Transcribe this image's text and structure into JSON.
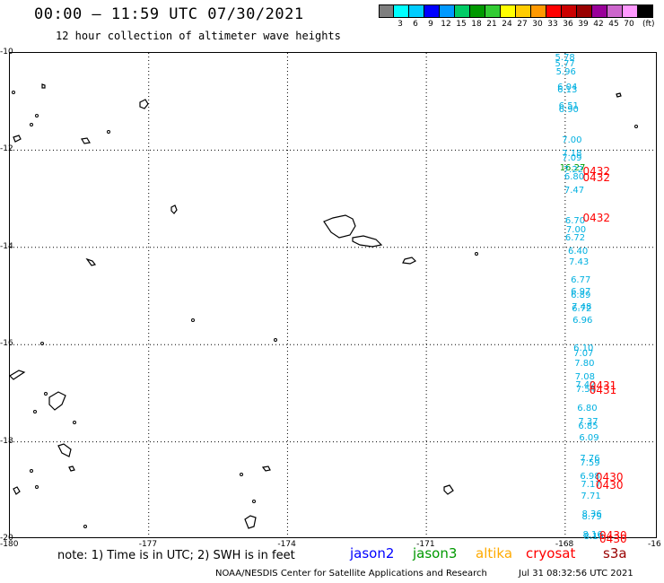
{
  "title": "00:00 – 11:59 UTC 07/30/2021",
  "subtitle": "12 hour collection of altimeter wave heights",
  "colorbar": {
    "unit": "(ft)",
    "bins": [
      {
        "label": "",
        "color": "#7f7f7f"
      },
      {
        "label": "3",
        "color": "#00ffff"
      },
      {
        "label": "6",
        "color": "#00ccff"
      },
      {
        "label": "9",
        "color": "#0000ff"
      },
      {
        "label": "12",
        "color": "#0099ff"
      },
      {
        "label": "15",
        "color": "#00cc66"
      },
      {
        "label": "18",
        "color": "#009900"
      },
      {
        "label": "21",
        "color": "#33cc33"
      },
      {
        "label": "24",
        "color": "#ffff00"
      },
      {
        "label": "27",
        "color": "#ffcc00"
      },
      {
        "label": "30",
        "color": "#ff9900"
      },
      {
        "label": "33",
        "color": "#ff0000"
      },
      {
        "label": "36",
        "color": "#cc0000"
      },
      {
        "label": "39",
        "color": "#990000"
      },
      {
        "label": "42",
        "color": "#990099"
      },
      {
        "label": "45",
        "color": "#cc66cc"
      },
      {
        "label": "70",
        "color": "#ff99ff"
      },
      {
        "label": "",
        "color": "#000000"
      }
    ]
  },
  "axes": {
    "lon_labels": [
      "-180",
      "-177",
      "-174",
      "-171",
      "-168",
      "-16"
    ],
    "lat_labels": [
      "-10",
      "-12",
      "-14",
      "-16",
      "-18",
      "-20"
    ]
  },
  "observations": [
    {
      "v": "5.78",
      "c": "#00b0e0",
      "lon": -168.2,
      "lat": -10.12
    },
    {
      "v": "5.77",
      "c": "#00b0e0",
      "lon": -168.2,
      "lat": -10.26
    },
    {
      "v": "5.96",
      "c": "#00b0e0",
      "lon": -168.18,
      "lat": -10.42
    },
    {
      "v": "6.04",
      "c": "#00b0e0",
      "lon": -168.15,
      "lat": -10.74
    },
    {
      "v": "6.13",
      "c": "#00b0e0",
      "lon": -168.15,
      "lat": -10.8
    },
    {
      "v": "6.51",
      "c": "#00b0e0",
      "lon": -168.12,
      "lat": -11.12
    },
    {
      "v": "6.90",
      "c": "#00b0e0",
      "lon": -168.12,
      "lat": -11.2
    },
    {
      "v": "7.00",
      "c": "#00b0e0",
      "lon": -168.05,
      "lat": -11.82
    },
    {
      "v": "7.18",
      "c": "#00b0e0",
      "lon": -168.05,
      "lat": -12.1
    },
    {
      "v": "7.09",
      "c": "#00b0e0",
      "lon": -168.05,
      "lat": -12.2
    },
    {
      "v": "16.27",
      "c": "#009900",
      "lon": -168.1,
      "lat": -12.4
    },
    {
      "v": "7.22",
      "c": "#00b0e0",
      "lon": -168.02,
      "lat": -12.44
    },
    {
      "v": "6.80",
      "c": "#00b0e0",
      "lon": -168.0,
      "lat": -12.58
    },
    {
      "v": "7.47",
      "c": "#00b0e0",
      "lon": -168.0,
      "lat": -12.86
    },
    {
      "v": "6.70",
      "c": "#00b0e0",
      "lon": -167.98,
      "lat": -13.48
    },
    {
      "v": "7.00",
      "c": "#00b0e0",
      "lon": -167.96,
      "lat": -13.68
    },
    {
      "v": "6.72",
      "c": "#00b0e0",
      "lon": -167.98,
      "lat": -13.84
    },
    {
      "v": "6.40",
      "c": "#00b0e0",
      "lon": -167.92,
      "lat": -14.12
    },
    {
      "v": "7.43",
      "c": "#00b0e0",
      "lon": -167.9,
      "lat": -14.34
    },
    {
      "v": "6.77",
      "c": "#00b0e0",
      "lon": -167.86,
      "lat": -14.7
    },
    {
      "v": "6.97",
      "c": "#00b0e0",
      "lon": -167.86,
      "lat": -14.94
    },
    {
      "v": "6.89",
      "c": "#00b0e0",
      "lon": -167.86,
      "lat": -15.02
    },
    {
      "v": "7.48",
      "c": "#00b0e0",
      "lon": -167.84,
      "lat": -15.26
    },
    {
      "v": "6.72",
      "c": "#00b0e0",
      "lon": -167.84,
      "lat": -15.3
    },
    {
      "v": "6.96",
      "c": "#00b0e0",
      "lon": -167.82,
      "lat": -15.54
    },
    {
      "v": "6.10",
      "c": "#00b0e0",
      "lon": -167.8,
      "lat": -16.1
    },
    {
      "v": "7.07",
      "c": "#00b0e0",
      "lon": -167.8,
      "lat": -16.22
    },
    {
      "v": "7.80",
      "c": "#00b0e0",
      "lon": -167.78,
      "lat": -16.42
    },
    {
      "v": "7.08",
      "c": "#00b0e0",
      "lon": -167.77,
      "lat": -16.7
    },
    {
      "v": "7.42",
      "c": "#00b0e0",
      "lon": -167.76,
      "lat": -16.86
    },
    {
      "v": "7.54",
      "c": "#00b0e0",
      "lon": -167.75,
      "lat": -16.96
    },
    {
      "v": "6.80",
      "c": "#00b0e0",
      "lon": -167.72,
      "lat": -17.34
    },
    {
      "v": "7.37",
      "c": "#00b0e0",
      "lon": -167.7,
      "lat": -17.62
    },
    {
      "v": "6.85",
      "c": "#00b0e0",
      "lon": -167.7,
      "lat": -17.72
    },
    {
      "v": "6.09",
      "c": "#00b0e0",
      "lon": -167.68,
      "lat": -17.96
    },
    {
      "v": "7.76",
      "c": "#00b0e0",
      "lon": -167.66,
      "lat": -18.38
    },
    {
      "v": "7.59",
      "c": "#00b0e0",
      "lon": -167.66,
      "lat": -18.46
    },
    {
      "v": "6.98",
      "c": "#00b0e0",
      "lon": -167.66,
      "lat": -18.74
    },
    {
      "v": "7.17",
      "c": "#00b0e0",
      "lon": -167.64,
      "lat": -18.92
    },
    {
      "v": "7.71",
      "c": "#00b0e0",
      "lon": -167.64,
      "lat": -19.16
    },
    {
      "v": "8.36",
      "c": "#00b0e0",
      "lon": -167.62,
      "lat": -19.52
    },
    {
      "v": "8.79",
      "c": "#00b0e0",
      "lon": -167.62,
      "lat": -19.58
    },
    {
      "v": "8.16",
      "c": "#00b0e0",
      "lon": -167.6,
      "lat": -19.94
    },
    {
      "v": "8.10",
      "c": "#00b0e0",
      "lon": -167.58,
      "lat": -19.98
    },
    {
      "v": "0432",
      "c": "#ff0000",
      "lon": -167.6,
      "lat": -12.44,
      "big": true
    },
    {
      "v": "0432",
      "c": "#ff0000",
      "lon": -167.6,
      "lat": -12.56,
      "big": true
    },
    {
      "v": "0432",
      "c": "#ff0000",
      "lon": -167.6,
      "lat": -13.4,
      "big": true
    },
    {
      "v": "0431",
      "c": "#ff0000",
      "lon": -167.46,
      "lat": -16.84,
      "big": true
    },
    {
      "v": "0431",
      "c": "#ff0000",
      "lon": -167.46,
      "lat": -16.94,
      "big": true
    },
    {
      "v": "0430",
      "c": "#ff0000",
      "lon": -167.32,
      "lat": -18.72,
      "big": true
    },
    {
      "v": "0430",
      "c": "#ff0000",
      "lon": -167.32,
      "lat": -18.9,
      "big": true
    },
    {
      "v": "0430",
      "c": "#ff0000",
      "lon": -167.24,
      "lat": -19.92,
      "big": true
    },
    {
      "v": "0430",
      "c": "#ff0000",
      "lon": -167.24,
      "lat": -20.0,
      "big": true
    }
  ],
  "note": "note: 1) Time is in UTC; 2) SWH is in feet",
  "satellites": [
    {
      "name": "jason2",
      "color": "#0000ff"
    },
    {
      "name": "jason3",
      "color": "#009900"
    },
    {
      "name": "altika",
      "color": "#ffaa00"
    },
    {
      "name": "cryosat",
      "color": "#ff0000"
    },
    {
      "name": "s3a",
      "color": "#990000"
    }
  ],
  "credit": "NOAA/NESDIS Center for Satellite Applications and Research",
  "timestamp": "Jul 31 08:32:56 UTC 2021"
}
